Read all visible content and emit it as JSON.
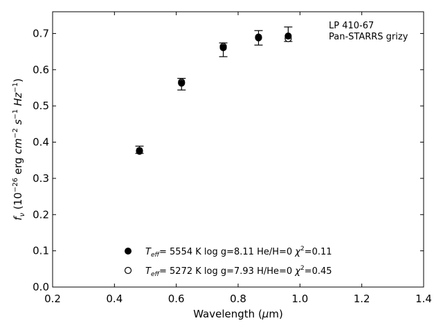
{
  "chart_data": {
    "type": "scatter",
    "xlabel": {
      "pre": "Wavelength (",
      "sym": "μ",
      "post": "m)"
    },
    "ylabel": {
      "f": "f",
      "fsub": "ν",
      "t1": " (10",
      "e1": "−26",
      "t2": " erg ",
      "cm": "cm",
      "e2": "−2",
      "s": "s",
      "e3": "−1",
      "hz": "Hz",
      "e4": "−1",
      "t3": ")"
    },
    "xlim": [
      0.2,
      1.4
    ],
    "ylim": [
      0.0,
      0.76
    ],
    "xticks": [
      0.2,
      0.4,
      0.6,
      0.8,
      1.0,
      1.2,
      1.4
    ],
    "xtick_labels": [
      "0.2",
      "0.4",
      "0.6",
      "0.8",
      "1.0",
      "1.2",
      "1.4"
    ],
    "yticks": [
      0.0,
      0.1,
      0.2,
      0.3,
      0.4,
      0.5,
      0.6,
      0.7
    ],
    "ytick_labels": [
      "0.0",
      "0.1",
      "0.2",
      "0.3",
      "0.4",
      "0.5",
      "0.6",
      "0.7"
    ],
    "annotation": {
      "line1": "LP 410-67",
      "line2": "Pan-STARRS grizy"
    },
    "observed": [
      {
        "x": 0.481,
        "y": 0.379,
        "err": 0.01
      },
      {
        "x": 0.617,
        "y": 0.56,
        "err": 0.016
      },
      {
        "x": 0.752,
        "y": 0.655,
        "err": 0.019
      },
      {
        "x": 0.866,
        "y": 0.688,
        "err": 0.02
      },
      {
        "x": 0.962,
        "y": 0.698,
        "err": 0.02
      }
    ],
    "series": [
      {
        "marker": "filled",
        "teff_label": "T",
        "teff_sub": "eff",
        "text_a": "=  5554 K  log g=8.11  He/H=0  ",
        "chi": "χ",
        "chi_sup": "2",
        "text_b": "=0.11",
        "x": [
          0.481,
          0.617,
          0.752,
          0.866,
          0.962
        ],
        "y": [
          0.375,
          0.563,
          0.661,
          0.69,
          0.693
        ]
      },
      {
        "marker": "open",
        "teff_label": "T",
        "teff_sub": "eff",
        "text_a": "=  5272 K  log g=7.93  H/He=0  ",
        "chi": "χ",
        "chi_sup": "2",
        "text_b": "=0.45",
        "x": [
          0.481,
          0.617,
          0.752,
          0.866,
          0.962
        ],
        "y": [
          0.377,
          0.566,
          0.664,
          0.688,
          0.686
        ]
      }
    ],
    "grid": false,
    "legend_position": "lower-center"
  }
}
